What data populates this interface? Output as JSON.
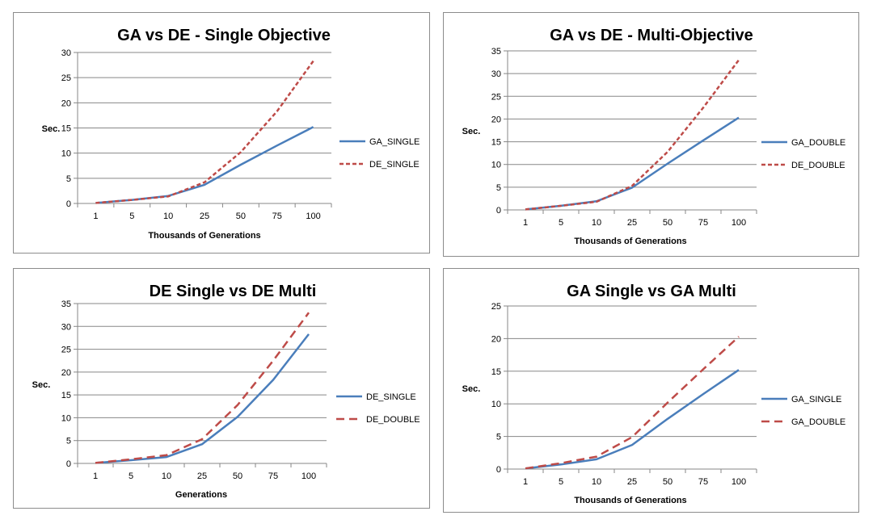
{
  "chart_data": [
    {
      "type": "line",
      "title": "GA vs DE - Single Objective",
      "xlabel": "Thousands  of Generations",
      "ylabel": "Sec.",
      "categories": [
        "1",
        "5",
        "10",
        "25",
        "50",
        "75",
        "100"
      ],
      "ylim": [
        0,
        30
      ],
      "yticks": [
        0,
        5,
        10,
        15,
        20,
        25,
        30
      ],
      "grid": true,
      "legend_position": "right",
      "series": [
        {
          "name": "GA_SINGLE",
          "values": [
            0.1,
            0.7,
            1.5,
            3.7,
            7.7,
            11.5,
            15.2
          ],
          "color": "#4a7ebb",
          "dash": "solid"
        },
        {
          "name": "DE_SINGLE",
          "values": [
            0.1,
            0.7,
            1.4,
            4.2,
            10.2,
            18.3,
            28.3
          ],
          "color": "#be4b48",
          "dash": "short"
        }
      ]
    },
    {
      "type": "line",
      "title": "GA vs DE - Multi-Objective",
      "xlabel": "Thousands  of  Generations",
      "ylabel": "Sec.",
      "categories": [
        "1",
        "5",
        "10",
        "25",
        "50",
        "75",
        "100"
      ],
      "ylim": [
        0,
        35
      ],
      "yticks": [
        0,
        5,
        10,
        15,
        20,
        25,
        30,
        35
      ],
      "grid": true,
      "legend_position": "right",
      "series": [
        {
          "name": "GA_DOUBLE",
          "values": [
            0.1,
            0.9,
            1.9,
            4.9,
            10.2,
            15.3,
            20.3
          ],
          "color": "#4a7ebb",
          "dash": "solid"
        },
        {
          "name": "DE_DOUBLE",
          "values": [
            0.1,
            0.9,
            1.8,
            5.3,
            12.8,
            22.5,
            33.0
          ],
          "color": "#be4b48",
          "dash": "short"
        }
      ]
    },
    {
      "type": "line",
      "title": "DE Single vs DE Multi",
      "xlabel": "Generations",
      "ylabel": "Sec.",
      "categories": [
        "1",
        "5",
        "10",
        "25",
        "50",
        "75",
        "100"
      ],
      "ylim": [
        0,
        35
      ],
      "yticks": [
        0,
        5,
        10,
        15,
        20,
        25,
        30,
        35
      ],
      "grid": true,
      "legend_position": "right",
      "series": [
        {
          "name": "DE_SINGLE",
          "values": [
            0.1,
            0.7,
            1.4,
            4.2,
            10.2,
            18.3,
            28.3
          ],
          "color": "#4a7ebb",
          "dash": "solid"
        },
        {
          "name": "DE_DOUBLE",
          "values": [
            0.1,
            0.9,
            1.8,
            5.3,
            12.8,
            22.5,
            33.0
          ],
          "color": "#be4b48",
          "dash": "long"
        }
      ]
    },
    {
      "type": "line",
      "title": "GA Single vs GA Multi",
      "xlabel": "Thousands  of Generations",
      "ylabel": "Sec.",
      "categories": [
        "1",
        "5",
        "10",
        "25",
        "50",
        "75",
        "100"
      ],
      "ylim": [
        0,
        25
      ],
      "yticks": [
        0,
        5,
        10,
        15,
        20,
        25
      ],
      "grid": true,
      "legend_position": "right",
      "series": [
        {
          "name": "GA_SINGLE",
          "values": [
            0.1,
            0.7,
            1.5,
            3.7,
            7.7,
            11.5,
            15.2
          ],
          "color": "#4a7ebb",
          "dash": "solid"
        },
        {
          "name": "GA_DOUBLE",
          "values": [
            0.1,
            0.9,
            1.9,
            4.9,
            10.2,
            15.3,
            20.3
          ],
          "color": "#be4b48",
          "dash": "long"
        }
      ]
    }
  ]
}
